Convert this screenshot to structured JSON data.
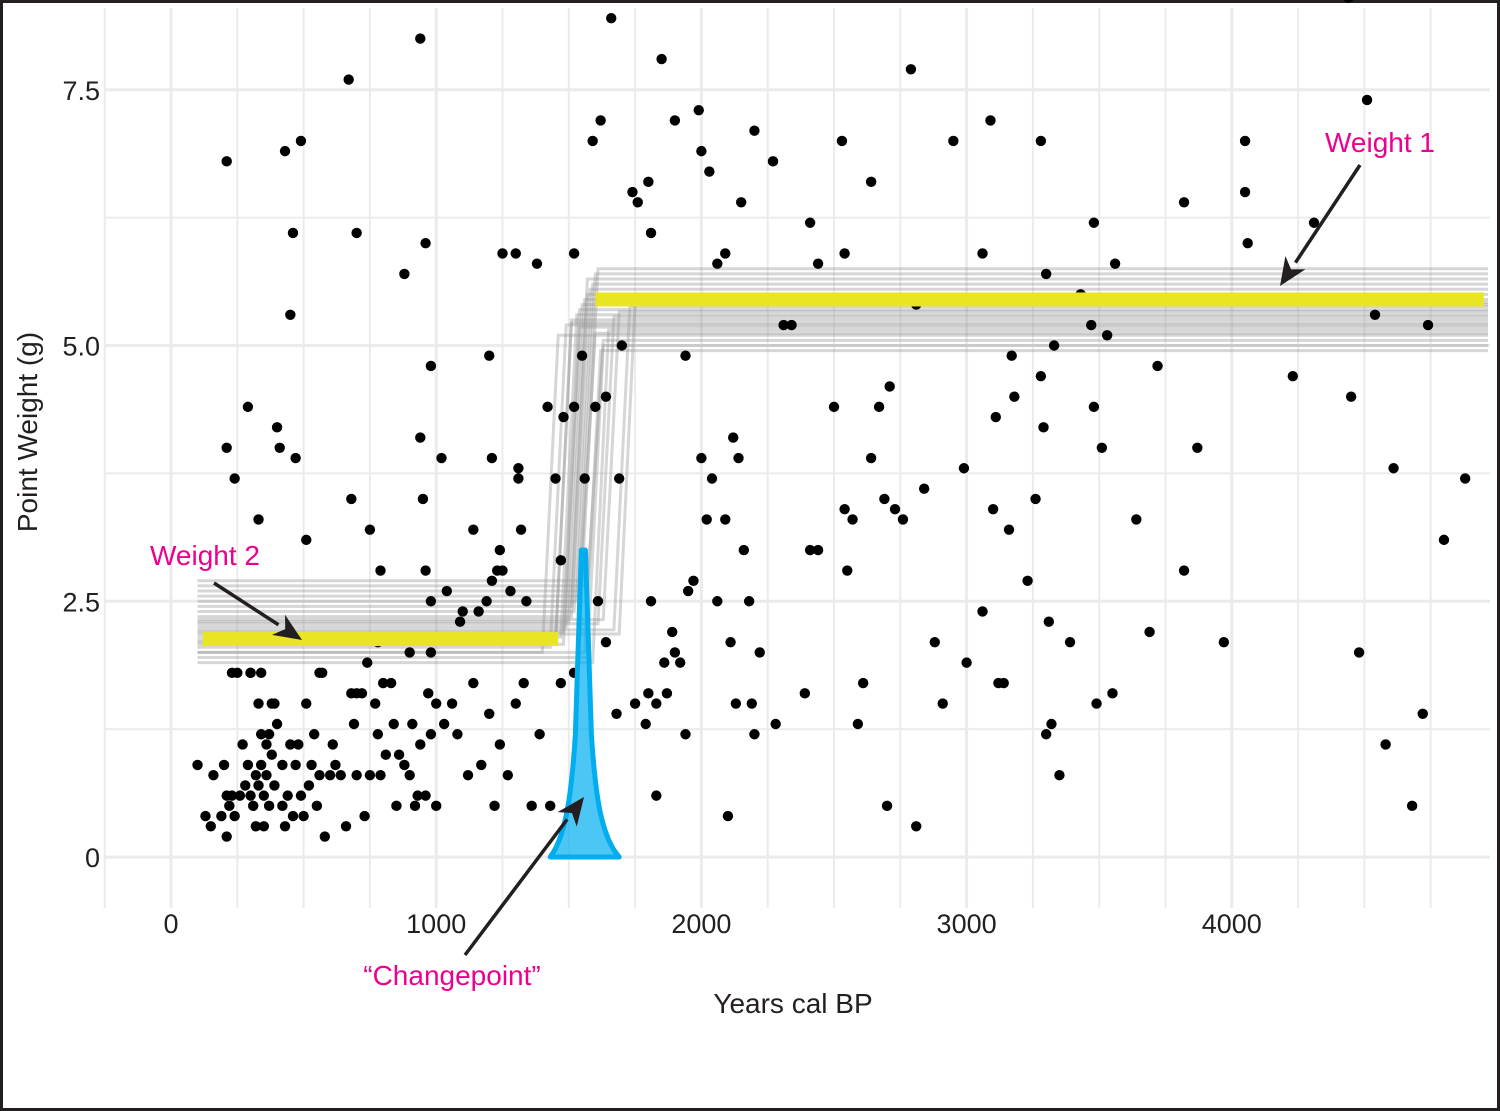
{
  "chart_data": {
    "type": "scatter",
    "title": "",
    "xlabel": "Years cal BP",
    "ylabel": "Point Weight (g)",
    "xlim": [
      -250,
      4950
    ],
    "ylim": [
      -0.5,
      8.3
    ],
    "x_ticks": [
      0,
      1000,
      2000,
      3000,
      4000
    ],
    "x_tick_labels": [
      "0",
      "1000",
      "2000",
      "3000",
      "4000"
    ],
    "y_ticks": [
      0,
      2.5,
      5.0,
      7.5
    ],
    "y_tick_labels": [
      "0",
      "2.5",
      "5.0",
      "7.5"
    ],
    "grid": true,
    "points": [
      [
        100,
        0.9
      ],
      [
        130,
        0.4
      ],
      [
        150,
        0.3
      ],
      [
        160,
        0.8
      ],
      [
        190,
        0.4
      ],
      [
        200,
        0.9
      ],
      [
        210,
        0.6
      ],
      [
        210,
        0.2
      ],
      [
        220,
        0.5
      ],
      [
        230,
        0.6
      ],
      [
        240,
        0.4
      ],
      [
        250,
        1.8
      ],
      [
        260,
        0.6
      ],
      [
        270,
        1.1
      ],
      [
        280,
        0.7
      ],
      [
        290,
        0.9
      ],
      [
        300,
        0.6
      ],
      [
        300,
        1.8
      ],
      [
        310,
        0.5
      ],
      [
        320,
        0.8
      ],
      [
        320,
        0.3
      ],
      [
        330,
        1.5
      ],
      [
        330,
        0.7
      ],
      [
        340,
        1.2
      ],
      [
        340,
        0.9
      ],
      [
        350,
        0.6
      ],
      [
        350,
        0.3
      ],
      [
        360,
        1.1
      ],
      [
        360,
        0.8
      ],
      [
        370,
        1.2
      ],
      [
        370,
        0.5
      ],
      [
        380,
        1.0
      ],
      [
        380,
        1.5
      ],
      [
        390,
        0.7
      ],
      [
        400,
        1.3
      ],
      [
        420,
        0.5
      ],
      [
        420,
        0.9
      ],
      [
        430,
        0.3
      ],
      [
        440,
        0.6
      ],
      [
        450,
        1.1
      ],
      [
        460,
        0.4
      ],
      [
        470,
        0.9
      ],
      [
        480,
        1.1
      ],
      [
        490,
        0.6
      ],
      [
        500,
        0.4
      ],
      [
        510,
        1.5
      ],
      [
        520,
        0.7
      ],
      [
        530,
        0.9
      ],
      [
        540,
        1.2
      ],
      [
        550,
        0.5
      ],
      [
        560,
        0.8
      ],
      [
        570,
        1.8
      ],
      [
        580,
        0.2
      ],
      [
        600,
        0.8
      ],
      [
        610,
        1.1
      ],
      [
        620,
        0.9
      ],
      [
        640,
        0.8
      ],
      [
        660,
        0.3
      ],
      [
        680,
        1.6
      ],
      [
        690,
        1.3
      ],
      [
        700,
        0.8
      ],
      [
        720,
        1.6
      ],
      [
        730,
        0.4
      ],
      [
        740,
        1.9
      ],
      [
        750,
        0.8
      ],
      [
        770,
        1.5
      ],
      [
        780,
        1.2
      ],
      [
        790,
        0.8
      ],
      [
        800,
        1.7
      ],
      [
        810,
        1.0
      ],
      [
        830,
        1.7
      ],
      [
        840,
        1.3
      ],
      [
        850,
        0.5
      ],
      [
        860,
        1.0
      ],
      [
        880,
        0.9
      ],
      [
        900,
        0.8
      ],
      [
        910,
        1.3
      ],
      [
        920,
        0.5
      ],
      [
        930,
        0.6
      ],
      [
        940,
        1.1
      ],
      [
        960,
        0.6
      ],
      [
        970,
        1.6
      ],
      [
        980,
        1.2
      ],
      [
        1000,
        1.5
      ],
      [
        1000,
        0.5
      ],
      [
        1030,
        1.3
      ],
      [
        1060,
        1.5
      ],
      [
        1080,
        1.2
      ],
      [
        1120,
        0.8
      ],
      [
        1140,
        1.7
      ],
      [
        1170,
        0.9
      ],
      [
        1200,
        1.4
      ],
      [
        1220,
        0.5
      ],
      [
        1240,
        1.1
      ],
      [
        1270,
        0.8
      ],
      [
        1300,
        1.5
      ],
      [
        1330,
        1.7
      ],
      [
        1360,
        0.5
      ],
      [
        1390,
        1.2
      ],
      [
        1430,
        0.5
      ],
      [
        1470,
        1.7
      ],
      [
        1520,
        1.8
      ],
      [
        230,
        1.8
      ],
      [
        300,
        1.8
      ],
      [
        340,
        1.8
      ],
      [
        390,
        1.5
      ],
      [
        560,
        1.8
      ],
      [
        700,
        1.6
      ],
      [
        780,
        2.1
      ],
      [
        900,
        2.0
      ],
      [
        980,
        2.0
      ],
      [
        1100,
        2.4
      ],
      [
        1190,
        2.5
      ],
      [
        1280,
        2.6
      ],
      [
        210,
        4.0
      ],
      [
        240,
        3.7
      ],
      [
        290,
        4.4
      ],
      [
        330,
        3.3
      ],
      [
        400,
        4.2
      ],
      [
        410,
        4.0
      ],
      [
        470,
        3.9
      ],
      [
        510,
        3.1
      ],
      [
        680,
        3.5
      ],
      [
        750,
        3.2
      ],
      [
        790,
        2.8
      ],
      [
        940,
        4.1
      ],
      [
        950,
        3.5
      ],
      [
        960,
        2.8
      ],
      [
        980,
        2.5
      ],
      [
        1020,
        3.9
      ],
      [
        1040,
        2.6
      ],
      [
        1090,
        2.3
      ],
      [
        1140,
        3.2
      ],
      [
        1160,
        2.4
      ],
      [
        1210,
        3.9
      ],
      [
        1210,
        2.7
      ],
      [
        1230,
        2.8
      ],
      [
        1240,
        3.0
      ],
      [
        1250,
        2.8
      ],
      [
        1310,
        3.7
      ],
      [
        1310,
        3.8
      ],
      [
        1320,
        3.2
      ],
      [
        1340,
        2.5
      ],
      [
        1450,
        3.7
      ],
      [
        1470,
        2.9
      ],
      [
        1480,
        4.3
      ],
      [
        1520,
        4.4
      ],
      [
        1560,
        3.7
      ],
      [
        1600,
        4.4
      ],
      [
        1640,
        4.5
      ],
      [
        1690,
        3.7
      ],
      [
        210,
        6.8
      ],
      [
        430,
        6.9
      ],
      [
        450,
        5.3
      ],
      [
        460,
        6.1
      ],
      [
        490,
        7.0
      ],
      [
        670,
        7.6
      ],
      [
        700,
        6.1
      ],
      [
        880,
        5.7
      ],
      [
        940,
        8.0
      ],
      [
        960,
        6.0
      ],
      [
        980,
        4.8
      ],
      [
        1200,
        4.9
      ],
      [
        1250,
        5.9
      ],
      [
        1300,
        5.9
      ],
      [
        1380,
        5.8
      ],
      [
        1420,
        4.4
      ],
      [
        1520,
        5.9
      ],
      [
        1550,
        4.9
      ],
      [
        1590,
        7.0
      ],
      [
        1620,
        7.2
      ],
      [
        1660,
        8.2
      ],
      [
        1700,
        5.0
      ],
      [
        1740,
        6.5
      ],
      [
        1760,
        6.4
      ],
      [
        1800,
        6.6
      ],
      [
        1810,
        6.1
      ],
      [
        1850,
        7.8
      ],
      [
        1900,
        7.2
      ],
      [
        1940,
        4.9
      ],
      [
        1990,
        7.3
      ],
      [
        2000,
        6.9
      ],
      [
        2030,
        6.7
      ],
      [
        2060,
        5.8
      ],
      [
        2090,
        5.9
      ],
      [
        2150,
        6.4
      ],
      [
        2200,
        7.1
      ],
      [
        2270,
        6.8
      ],
      [
        2310,
        5.2
      ],
      [
        2340,
        5.2
      ],
      [
        2410,
        6.2
      ],
      [
        2440,
        5.8
      ],
      [
        2530,
        7.0
      ],
      [
        2540,
        5.9
      ],
      [
        2640,
        6.6
      ],
      [
        2790,
        7.7
      ],
      [
        2810,
        5.4
      ],
      [
        2950,
        7.0
      ],
      [
        3060,
        5.9
      ],
      [
        3090,
        7.2
      ],
      [
        3170,
        4.9
      ],
      [
        3280,
        7.0
      ],
      [
        3300,
        5.7
      ],
      [
        3430,
        5.5
      ],
      [
        3470,
        5.2
      ],
      [
        3480,
        6.2
      ],
      [
        3530,
        5.1
      ],
      [
        3560,
        5.8
      ],
      [
        3820,
        6.4
      ],
      [
        4050,
        7.0
      ],
      [
        4050,
        6.5
      ],
      [
        4060,
        6.0
      ],
      [
        4310,
        6.2
      ],
      [
        4440,
        8.4
      ],
      [
        4510,
        7.4
      ],
      [
        4540,
        5.3
      ],
      [
        4740,
        5.2
      ],
      [
        1610,
        2.5
      ],
      [
        1640,
        2.1
      ],
      [
        1680,
        1.4
      ],
      [
        1750,
        1.5
      ],
      [
        1790,
        1.3
      ],
      [
        1800,
        1.6
      ],
      [
        1810,
        2.5
      ],
      [
        1830,
        1.5
      ],
      [
        1860,
        1.9
      ],
      [
        1870,
        1.6
      ],
      [
        1890,
        2.2
      ],
      [
        1900,
        2.0
      ],
      [
        1920,
        1.9
      ],
      [
        1940,
        1.2
      ],
      [
        1950,
        2.6
      ],
      [
        1970,
        2.7
      ],
      [
        2000,
        3.9
      ],
      [
        2020,
        3.3
      ],
      [
        2040,
        3.7
      ],
      [
        2060,
        2.5
      ],
      [
        2090,
        3.3
      ],
      [
        2110,
        2.1
      ],
      [
        2120,
        4.1
      ],
      [
        2130,
        1.5
      ],
      [
        2140,
        3.9
      ],
      [
        2160,
        3.0
      ],
      [
        2180,
        2.5
      ],
      [
        2190,
        1.5
      ],
      [
        2200,
        1.2
      ],
      [
        2220,
        2.0
      ],
      [
        2280,
        1.3
      ],
      [
        2390,
        1.6
      ],
      [
        2410,
        3.0
      ],
      [
        2440,
        3.0
      ],
      [
        2500,
        4.4
      ],
      [
        2540,
        3.4
      ],
      [
        2550,
        2.8
      ],
      [
        2570,
        3.3
      ],
      [
        2590,
        1.3
      ],
      [
        2610,
        1.7
      ],
      [
        2640,
        3.9
      ],
      [
        2670,
        4.4
      ],
      [
        2690,
        3.5
      ],
      [
        2710,
        4.6
      ],
      [
        2730,
        3.4
      ],
      [
        2760,
        3.3
      ],
      [
        2840,
        3.6
      ],
      [
        2880,
        2.1
      ],
      [
        2910,
        1.5
      ],
      [
        2990,
        3.8
      ],
      [
        3000,
        1.9
      ],
      [
        3060,
        2.4
      ],
      [
        3100,
        3.4
      ],
      [
        3110,
        4.3
      ],
      [
        3120,
        1.7
      ],
      [
        3140,
        1.7
      ],
      [
        3160,
        3.2
      ],
      [
        3180,
        4.5
      ],
      [
        3230,
        2.7
      ],
      [
        3260,
        3.5
      ],
      [
        3280,
        4.7
      ],
      [
        3290,
        4.2
      ],
      [
        3300,
        1.2
      ],
      [
        3310,
        2.3
      ],
      [
        3320,
        1.3
      ],
      [
        3330,
        5.0
      ],
      [
        3350,
        0.8
      ],
      [
        3390,
        2.1
      ],
      [
        3480,
        4.4
      ],
      [
        3490,
        1.5
      ],
      [
        3510,
        4.0
      ],
      [
        3550,
        1.6
      ],
      [
        3640,
        3.3
      ],
      [
        3690,
        2.2
      ],
      [
        3720,
        4.8
      ],
      [
        3820,
        2.8
      ],
      [
        3870,
        4.0
      ],
      [
        3970,
        2.1
      ],
      [
        4230,
        4.7
      ],
      [
        4450,
        4.5
      ],
      [
        4480,
        2.0
      ],
      [
        4580,
        1.1
      ],
      [
        4610,
        3.8
      ],
      [
        4680,
        0.5
      ],
      [
        4720,
        1.4
      ],
      [
        4800,
        3.1
      ],
      [
        4880,
        3.7
      ],
      [
        1830,
        0.6
      ],
      [
        2100,
        0.4
      ],
      [
        2700,
        0.5
      ],
      [
        2810,
        0.3
      ]
    ],
    "series": [
      {
        "name": "Weight 1",
        "type": "segment",
        "x_start": 1600,
        "x_end": 4950,
        "y": 5.45,
        "color": "#eae523"
      },
      {
        "name": "Weight 2",
        "type": "segment",
        "x_start": 120,
        "x_end": 1460,
        "y": 2.13,
        "color": "#eae523"
      },
      {
        "name": "Changepoint",
        "type": "density",
        "center": 1555,
        "spread_x": [
          1430,
          1690
        ],
        "peak_y": 3.0,
        "color": "#00aeef"
      }
    ],
    "posterior_steps": {
      "count": 24,
      "color": "#999999",
      "low_levels": [
        2.0,
        2.05,
        2.1,
        2.15,
        2.2,
        2.25,
        2.3,
        2.35,
        2.4,
        2.5,
        2.6,
        2.7,
        2.0,
        1.95,
        1.9,
        2.28,
        2.32,
        2.22,
        2.18,
        2.12,
        2.08,
        2.45,
        2.55,
        2.65
      ],
      "high_levels": [
        5.1,
        5.2,
        5.25,
        5.3,
        5.35,
        5.4,
        5.45,
        5.5,
        5.55,
        5.6,
        5.7,
        5.75,
        4.95,
        5.0,
        5.15,
        5.28,
        5.33,
        5.38,
        5.42,
        5.22,
        5.18,
        5.65,
        5.12,
        5.05
      ],
      "switch_x": [
        1430,
        1460,
        1480,
        1500,
        1510,
        1520,
        1530,
        1540,
        1550,
        1560,
        1570,
        1580,
        1590,
        1600,
        1620,
        1640,
        1660,
        1700,
        1720,
        1480,
        1510,
        1540,
        1570,
        1600
      ]
    },
    "annotations": [
      {
        "text": "Weight 1",
        "x": 4230,
        "y": 6.95,
        "arrow_to": [
          4050,
          5.6
        ]
      },
      {
        "text": "Weight 2",
        "x": 380,
        "y": 2.95,
        "arrow_to": [
          490,
          2.1
        ]
      },
      {
        "text": "“Changepoint”",
        "x": 1130,
        "y": -1.15,
        "arrow_to": [
          1560,
          0.5
        ]
      }
    ]
  },
  "labels": {
    "xlabel": "Years cal BP",
    "ylabel": "Point Weight (g)",
    "weight1": "Weight 1",
    "weight2": "Weight 2",
    "changepoint": "“Changepoint”"
  }
}
